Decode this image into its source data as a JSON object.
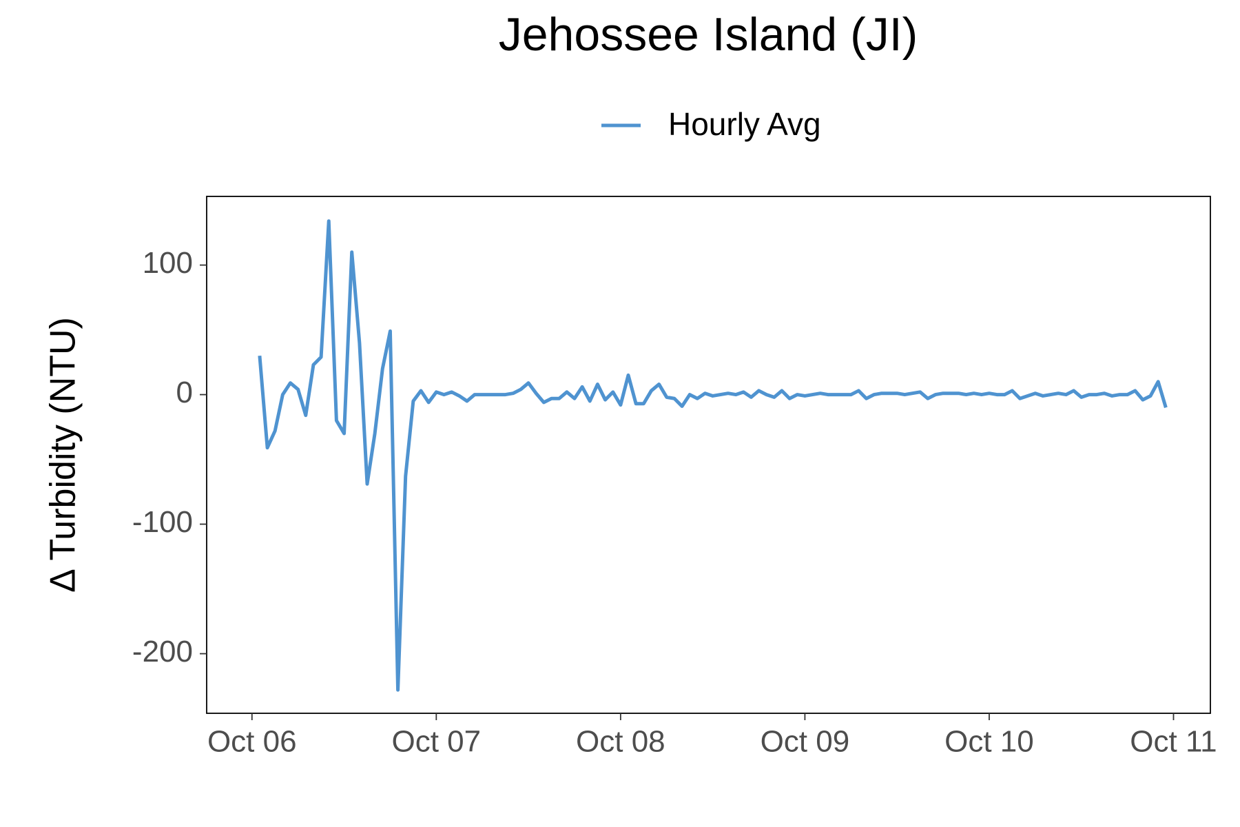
{
  "chart_data": {
    "type": "line",
    "title": "Jehossee Island (JI)",
    "y_label": "Δ Turbidity (NTU)",
    "x": [
      1,
      2,
      3,
      4,
      5,
      6,
      7,
      8,
      9,
      10,
      11,
      12,
      13,
      14,
      15,
      16,
      17,
      18,
      19,
      20,
      21,
      22,
      23,
      24,
      25,
      26,
      27,
      28,
      29,
      30,
      31,
      32,
      33,
      34,
      35,
      36,
      37,
      38,
      39,
      40,
      41,
      42,
      43,
      44,
      45,
      46,
      47,
      48,
      49,
      50,
      51,
      52,
      53,
      54,
      55,
      56,
      57,
      58,
      59,
      60,
      61,
      62,
      63,
      64,
      65,
      66,
      67,
      68,
      69,
      70,
      71,
      72,
      73,
      74,
      75,
      76,
      77,
      78,
      79,
      80,
      81,
      82,
      83,
      84,
      85,
      86,
      87,
      88,
      89,
      90,
      91,
      92,
      93,
      94,
      95,
      96,
      97,
      98,
      99,
      100,
      101,
      102,
      103,
      104,
      105,
      106,
      107,
      108,
      109,
      110,
      111,
      112,
      113,
      114,
      115,
      116,
      117,
      118,
      119
    ],
    "series": [
      {
        "name": "Hourly Avg",
        "color": "#4f93d0",
        "values": [
          30,
          -41,
          -28,
          0,
          9,
          4,
          -16,
          23,
          29,
          134,
          -20,
          -30,
          110,
          40,
          -69,
          -30,
          20,
          49,
          -228,
          -63,
          -5,
          3,
          -6,
          2,
          0,
          2,
          -1,
          -5,
          0,
          0,
          0,
          0,
          0,
          1,
          4,
          9,
          1,
          -6,
          -3,
          -3,
          2,
          -3,
          6,
          -5,
          8,
          -4,
          2,
          -8,
          15,
          -7,
          -7,
          3,
          8,
          -2,
          -3,
          -9,
          0,
          -3,
          1,
          -1,
          0,
          1,
          0,
          2,
          -2,
          3,
          0,
          -2,
          3,
          -3,
          0,
          -1,
          0,
          1,
          0,
          0,
          0,
          0,
          3,
          -3,
          0,
          1,
          1,
          1,
          0,
          1,
          2,
          -3,
          0,
          1,
          1,
          1,
          0,
          1,
          0,
          1,
          0,
          0,
          3,
          -3,
          -1,
          1,
          -1,
          0,
          1,
          0,
          3,
          -2,
          0,
          0,
          1,
          -1,
          0,
          0,
          3,
          -4,
          -1,
          10,
          -10
        ]
      }
    ],
    "xlim": [
      -5.9,
      124.8
    ],
    "xticks": [
      {
        "value": 0,
        "label": "Oct 06"
      },
      {
        "value": 24,
        "label": "Oct 07"
      },
      {
        "value": 48,
        "label": "Oct 08"
      },
      {
        "value": 72,
        "label": "Oct 09"
      },
      {
        "value": 96,
        "label": "Oct 10"
      },
      {
        "value": 120,
        "label": "Oct 11"
      }
    ],
    "ylim": [
      -246,
      153
    ],
    "yticks": [
      -200,
      -100,
      0,
      100
    ],
    "grid": false,
    "legend": "top"
  }
}
